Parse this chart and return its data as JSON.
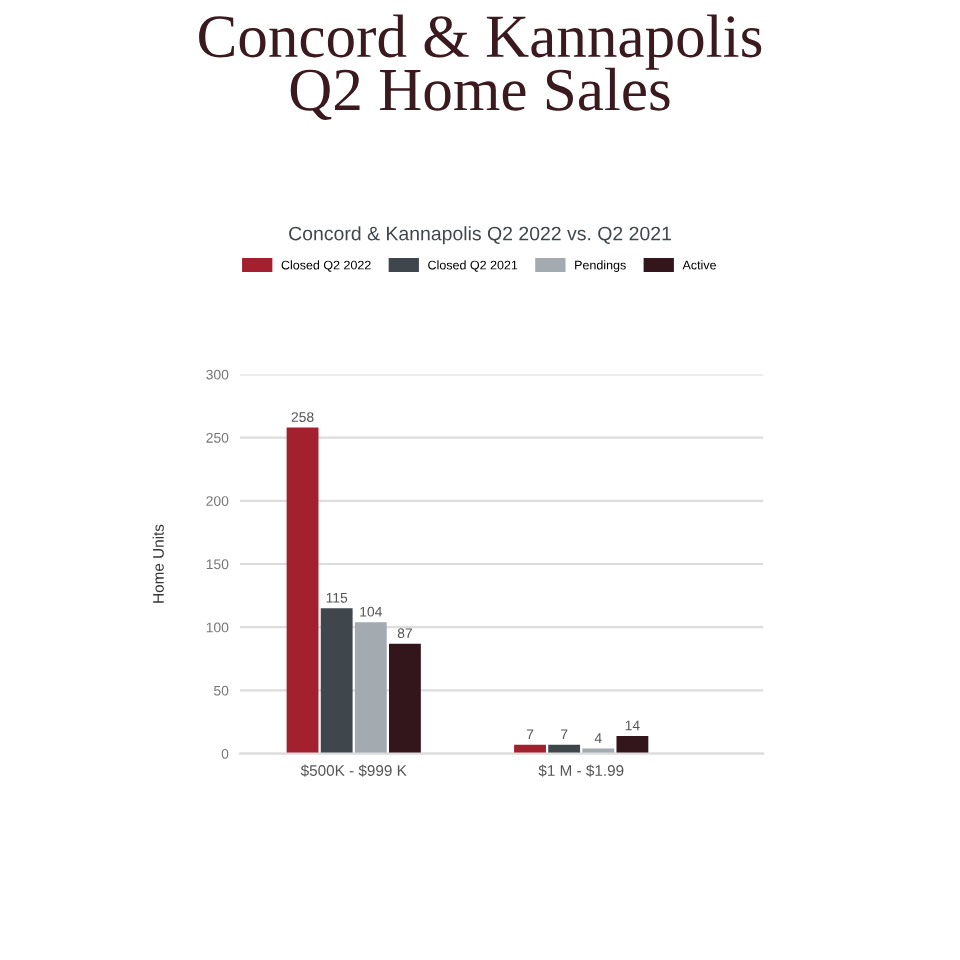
{
  "chart_data": {
    "type": "bar",
    "title": "Concord & Kannapolis\nQ2 Home Sales",
    "subtitle": "Concord & Kannapolis Q2 2022 vs. Q2 2021",
    "ylabel": "Home Units",
    "categories": [
      "$500K - $999 K",
      "$1 M - $1.99"
    ],
    "series": [
      {
        "name": "Closed Q2 2022",
        "color": "#a3202f",
        "values": [
          258,
          7
        ]
      },
      {
        "name": "Closed Q2 2021",
        "color": "#3f474d",
        "values": [
          115,
          7
        ]
      },
      {
        "name": "Pendings",
        "color": "#a3aab0",
        "values": [
          104,
          4
        ]
      },
      {
        "name": "Active",
        "color": "#33161b",
        "values": [
          87,
          14
        ]
      }
    ],
    "ylim": [
      0,
      300
    ],
    "yticks": [
      0,
      50,
      100,
      150,
      200,
      250,
      300
    ],
    "grid": "y",
    "legend": "top",
    "data_labels": true
  }
}
